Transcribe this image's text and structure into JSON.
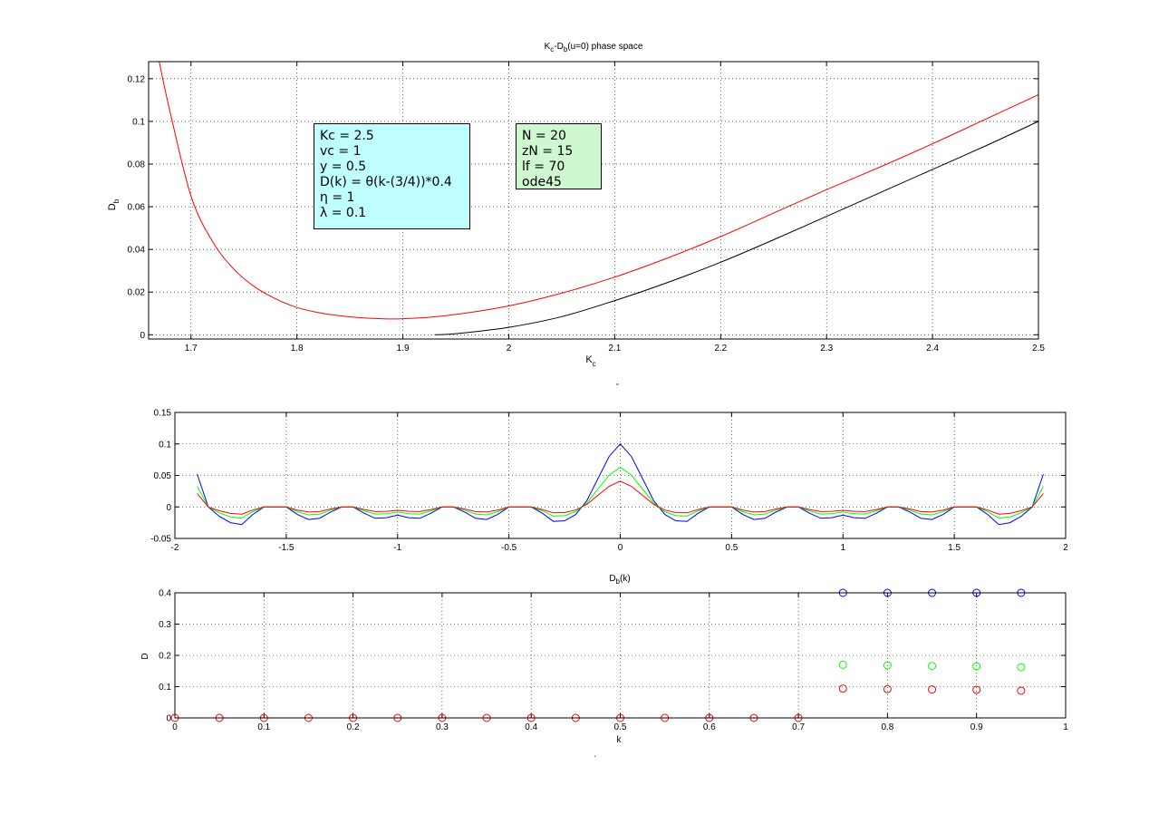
{
  "figure": {
    "colors": {
      "red": "#ff0000",
      "black": "#000000",
      "blue": "#0000ff",
      "green": "#00ff00",
      "param_box_bg": "#c0ffff",
      "solver_box_bg": "#d0f8d0"
    },
    "stray_marks": [
      "˘",
      "ˏ"
    ]
  },
  "chart_data": [
    {
      "type": "line",
      "title_parts": {
        "k": "K",
        "k_sub": "c",
        "mid": "-D",
        "d_sub": "b",
        "tail": "(u=0) phase space"
      },
      "xlabel_parts": {
        "main": "K",
        "sub": "c"
      },
      "ylabel_parts": {
        "main": "D",
        "sub": "b"
      },
      "xlim": [
        1.66,
        2.5
      ],
      "ylim": [
        -0.002,
        0.128
      ],
      "grid": true,
      "xticks": [
        1.7,
        1.8,
        1.9,
        2.0,
        2.1,
        2.2,
        2.3,
        2.4,
        2.5
      ],
      "xtick_labels": [
        "1.7",
        "1.8",
        "1.9",
        "2",
        "2.1",
        "2.2",
        "2.3",
        "2.4",
        "2.5"
      ],
      "yticks": [
        0,
        0.02,
        0.04,
        0.06,
        0.08,
        0.1,
        0.12
      ],
      "ytick_labels": [
        "0",
        "0.02",
        "0.04",
        "0.06",
        "0.08",
        "0.1",
        "0.12"
      ],
      "series": [
        {
          "color": "#ff0000",
          "x": [
            1.67,
            1.68,
            1.7,
            1.72,
            1.74,
            1.76,
            1.78,
            1.8,
            1.82,
            1.84,
            1.86,
            1.88,
            1.89,
            1.9,
            1.92,
            1.95,
            2.0,
            2.05,
            2.1,
            2.15,
            2.2,
            2.25,
            2.3,
            2.35,
            2.4,
            2.45,
            2.5
          ],
          "y": [
            0.128,
            0.105,
            0.065,
            0.044,
            0.031,
            0.0225,
            0.0168,
            0.0128,
            0.0104,
            0.0089,
            0.008,
            0.0075,
            0.0074,
            0.0075,
            0.008,
            0.0095,
            0.0135,
            0.0195,
            0.027,
            0.036,
            0.046,
            0.057,
            0.068,
            0.0785,
            0.0895,
            0.101,
            0.1125
          ]
        },
        {
          "color": "#000000",
          "x": [
            1.93,
            1.95,
            2.0,
            2.05,
            2.1,
            2.15,
            2.2,
            2.25,
            2.3,
            2.35,
            2.4,
            2.45,
            2.5
          ],
          "y": [
            0.0,
            0.0005,
            0.0035,
            0.0085,
            0.016,
            0.0245,
            0.034,
            0.0445,
            0.0555,
            0.0665,
            0.0775,
            0.0885,
            0.1
          ]
        }
      ],
      "annotations": {
        "params": [
          "Kc = 2.5",
          "vc = 1",
          "y = 0.5",
          "D(k) = θ(k-(3/4))*0.4",
          "η = 1",
          "λ = 0.1"
        ],
        "solver": [
          "N = 20",
          "zN = 15",
          "lf = 70",
          "ode45"
        ]
      }
    },
    {
      "type": "line",
      "xlim": [
        -2,
        2
      ],
      "ylim": [
        -0.05,
        0.15
      ],
      "grid": true,
      "xticks": [
        -2,
        -1.5,
        -1,
        -0.5,
        0,
        0.5,
        1,
        1.5,
        2
      ],
      "xtick_labels": [
        "-2",
        "-1.5",
        "-1",
        "-0.5",
        "0",
        "0.5",
        "1",
        "1.5",
        "2"
      ],
      "yticks": [
        -0.05,
        0,
        0.05,
        0.1,
        0.15
      ],
      "ytick_labels": [
        "-0.05",
        "0",
        "0.05",
        "0.1",
        "0.15"
      ],
      "series": [
        {
          "color": "#0000ff",
          "amplitude": 1.0
        },
        {
          "color": "#00ff00",
          "amplitude": 0.63
        },
        {
          "color": "#ff0000",
          "amplitude": 0.41
        }
      ],
      "shape": {
        "x": [
          0,
          0.05,
          0.1,
          0.15,
          0.2,
          0.25,
          0.3,
          0.35,
          0.4,
          0.45,
          0.5,
          0.55,
          0.6,
          0.65,
          0.7,
          0.75,
          0.8,
          0.85,
          0.9,
          0.95,
          1.0,
          1.05,
          1.1,
          1.15,
          1.2,
          1.25,
          1.3,
          1.35,
          1.4,
          1.45,
          1.5,
          1.55,
          1.6,
          1.65,
          1.7,
          1.75,
          1.8,
          1.85,
          1.9
        ],
        "y": [
          0.1,
          0.08,
          0.045,
          0.01,
          -0.012,
          -0.022,
          -0.023,
          -0.01,
          0.0,
          0.0,
          0.0,
          -0.012,
          -0.02,
          -0.018,
          -0.008,
          0.0,
          0.0,
          -0.01,
          -0.018,
          -0.017,
          -0.013,
          -0.017,
          -0.018,
          -0.01,
          0.0,
          0.0,
          -0.008,
          -0.018,
          -0.02,
          -0.012,
          0.0,
          0.0,
          0.0,
          -0.012,
          -0.028,
          -0.025,
          -0.015,
          0.0,
          0.052
        ]
      }
    },
    {
      "type": "scatter",
      "title_parts": {
        "main": "D",
        "sub": "b",
        "tail": "(k)"
      },
      "xlabel": "k",
      "ylabel": "D",
      "xlim": [
        0,
        1
      ],
      "ylim": [
        0,
        0.4
      ],
      "grid": true,
      "xticks": [
        0,
        0.1,
        0.2,
        0.3,
        0.4,
        0.5,
        0.6,
        0.7,
        0.8,
        0.9,
        1
      ],
      "xtick_labels": [
        "0",
        "0.1",
        "0.2",
        "0.3",
        "0.4",
        "0.5",
        "0.6",
        "0.7",
        "0.8",
        "0.9",
        "1"
      ],
      "yticks": [
        0,
        0.1,
        0.2,
        0.3,
        0.4
      ],
      "ytick_labels": [
        "0",
        "0.1",
        "0.2",
        "0.3",
        "0.4"
      ],
      "series": [
        {
          "color": "#0000ff",
          "x": [
            0.75,
            0.8,
            0.85,
            0.9,
            0.95
          ],
          "y": [
            0.4,
            0.4,
            0.4,
            0.4,
            0.4
          ]
        },
        {
          "color": "#00ff00",
          "x": [
            0.75,
            0.8,
            0.85,
            0.9,
            0.95
          ],
          "y": [
            0.17,
            0.168,
            0.166,
            0.165,
            0.162
          ]
        },
        {
          "color": "#ff0000",
          "x": [
            0,
            0.05,
            0.1,
            0.15,
            0.2,
            0.25,
            0.3,
            0.35,
            0.4,
            0.45,
            0.5,
            0.55,
            0.6,
            0.65,
            0.7,
            0.75,
            0.8,
            0.85,
            0.9,
            0.95
          ],
          "y": [
            0,
            0,
            0,
            0,
            0,
            0,
            0,
            0,
            0,
            0,
            0,
            0,
            0,
            0,
            0,
            0.094,
            0.092,
            0.091,
            0.09,
            0.087
          ]
        }
      ]
    }
  ]
}
